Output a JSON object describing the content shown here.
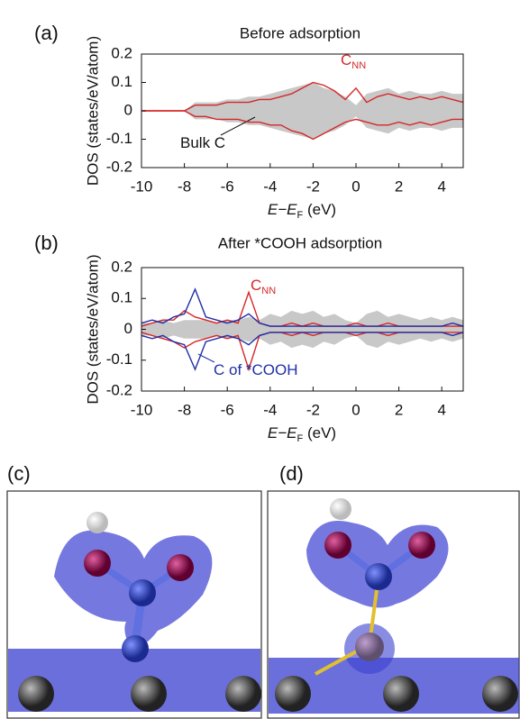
{
  "chart_data": [
    {
      "type": "area",
      "panel_label": "(a)",
      "title": "Before adsorption",
      "ylabel": "DOS (states/eV/atom)",
      "xlabel": {
        "pre": "E−E",
        "sub": "F",
        "post": " (eV)"
      },
      "x": [
        -10,
        -9.5,
        -9,
        -8.5,
        -8,
        -7.5,
        -7,
        -6.5,
        -6,
        -5.5,
        -5,
        -4.5,
        -4,
        -3.5,
        -3,
        -2.5,
        -2,
        -1.5,
        -1,
        -0.5,
        0,
        0.5,
        1,
        1.5,
        2,
        2.5,
        3,
        3.5,
        4,
        4.5,
        5
      ],
      "xlim": [
        -10,
        5
      ],
      "xticks": [
        -10,
        -8,
        -6,
        -4,
        -2,
        0,
        2,
        4
      ],
      "ylim": [
        -0.2,
        0.2
      ],
      "yticks": [
        0.2,
        0.1,
        0,
        -0.1,
        -0.2
      ],
      "series": [
        {
          "name": "Bulk C",
          "color": "#c8c8c8",
          "fill": true,
          "values": [
            0,
            0,
            0,
            0,
            0,
            0.03,
            0.03,
            0.03,
            0.04,
            0.04,
            0.05,
            0.05,
            0.06,
            0.07,
            0.08,
            0.09,
            0.1,
            0.08,
            0.07,
            0.05,
            0.02,
            0.06,
            0.07,
            0.08,
            0.06,
            0.07,
            0.06,
            0.06,
            0.07,
            0.06,
            0.06
          ],
          "values_down": [
            0,
            0,
            0,
            0,
            0,
            -0.03,
            -0.03,
            -0.03,
            -0.04,
            -0.04,
            -0.05,
            -0.05,
            -0.06,
            -0.07,
            -0.08,
            -0.09,
            -0.1,
            -0.08,
            -0.07,
            -0.05,
            -0.02,
            -0.06,
            -0.07,
            -0.08,
            -0.06,
            -0.07,
            -0.06,
            -0.06,
            -0.07,
            -0.06,
            -0.06
          ]
        },
        {
          "name": "C",
          "name_sub": "NN",
          "color": "#d62728",
          "fill": false,
          "values": [
            0,
            0,
            0,
            0,
            0,
            0.02,
            0.02,
            0.02,
            0.03,
            0.03,
            0.03,
            0.04,
            0.04,
            0.05,
            0.06,
            0.08,
            0.1,
            0.09,
            0.07,
            0.04,
            0.08,
            0.03,
            0.05,
            0.06,
            0.05,
            0.04,
            0.05,
            0.04,
            0.05,
            0.04,
            0.03
          ],
          "values_down": [
            0,
            0,
            0,
            0,
            0,
            -0.02,
            -0.02,
            -0.03,
            -0.03,
            -0.03,
            -0.04,
            -0.04,
            -0.05,
            -0.05,
            -0.07,
            -0.08,
            -0.1,
            -0.08,
            -0.06,
            -0.04,
            -0.03,
            -0.04,
            -0.05,
            -0.05,
            -0.04,
            -0.05,
            -0.04,
            -0.05,
            -0.04,
            -0.03,
            -0.03
          ]
        }
      ]
    },
    {
      "type": "area",
      "panel_label": "(b)",
      "title": "After *COOH adsorption",
      "ylabel": "DOS (states/eV/atom)",
      "xlabel": {
        "pre": "E−E",
        "sub": "F",
        "post": " (eV)"
      },
      "x": [
        -10,
        -9.5,
        -9,
        -8.5,
        -8,
        -7.5,
        -7,
        -6.5,
        -6,
        -5.5,
        -5,
        -4.5,
        -4,
        -3.5,
        -3,
        -2.5,
        -2,
        -1.5,
        -1,
        -0.5,
        0,
        0.5,
        1,
        1.5,
        2,
        2.5,
        3,
        3.5,
        4,
        4.5,
        5
      ],
      "xlim": [
        -10,
        5
      ],
      "xticks": [
        -10,
        -8,
        -6,
        -4,
        -2,
        0,
        2,
        4
      ],
      "ylim": [
        -0.2,
        0.2
      ],
      "yticks": [
        0.2,
        0.1,
        0,
        -0.1,
        -0.2
      ],
      "series": [
        {
          "color": "#c8c8c8",
          "fill": true,
          "values": [
            0.02,
            0.02,
            0.03,
            0.02,
            0.03,
            0.03,
            0.03,
            0.02,
            0.03,
            0.03,
            0.04,
            0.03,
            0.05,
            0.04,
            0.06,
            0.05,
            0.06,
            0.04,
            0.05,
            0.03,
            0.02,
            0.05,
            0.06,
            0.04,
            0.05,
            0.04,
            0.03,
            0.04,
            0.03,
            0.04,
            0.03
          ],
          "values_down": [
            -0.02,
            -0.02,
            -0.03,
            -0.02,
            -0.03,
            -0.03,
            -0.03,
            -0.02,
            -0.03,
            -0.03,
            -0.04,
            -0.03,
            -0.05,
            -0.04,
            -0.06,
            -0.05,
            -0.06,
            -0.04,
            -0.05,
            -0.03,
            -0.02,
            -0.05,
            -0.06,
            -0.04,
            -0.05,
            -0.04,
            -0.03,
            -0.04,
            -0.03,
            -0.04,
            -0.03
          ]
        },
        {
          "name": "C",
          "name_sub": "NN",
          "color": "#d62728",
          "fill": false,
          "values": [
            0.01,
            0.02,
            0.03,
            0.03,
            0.06,
            0.04,
            0.03,
            0.02,
            0.03,
            0.02,
            0.12,
            0.02,
            0.01,
            0.01,
            0.02,
            0.01,
            0.02,
            0.01,
            0.01,
            0.01,
            0.02,
            0.01,
            0.01,
            0.02,
            0.01,
            0.01,
            0.01,
            0.01,
            0.01,
            0.01,
            0.01
          ],
          "values_down": [
            -0.01,
            -0.02,
            -0.03,
            -0.04,
            -0.06,
            -0.04,
            -0.03,
            -0.02,
            -0.03,
            -0.02,
            -0.13,
            -0.02,
            -0.01,
            -0.01,
            -0.02,
            -0.01,
            -0.02,
            -0.01,
            -0.01,
            -0.01,
            -0.02,
            -0.01,
            -0.01,
            -0.02,
            -0.01,
            -0.01,
            -0.01,
            -0.01,
            -0.01,
            -0.01,
            -0.01
          ]
        },
        {
          "name": "C of *COOH",
          "color": "#1f2fa8",
          "fill": false,
          "values": [
            0.02,
            0.03,
            0.02,
            0.04,
            0.05,
            0.13,
            0.04,
            0.03,
            0.02,
            0.03,
            0.05,
            0.02,
            0.01,
            0.01,
            0.01,
            0.01,
            0.01,
            0.01,
            0.01,
            0.01,
            0.01,
            0.01,
            0.01,
            0.01,
            0.01,
            0.01,
            0.01,
            0.01,
            0.01,
            0.02,
            0.01
          ],
          "values_down": [
            -0.02,
            -0.03,
            -0.02,
            -0.04,
            -0.05,
            -0.13,
            -0.04,
            -0.03,
            -0.02,
            -0.03,
            -0.05,
            -0.02,
            -0.01,
            -0.01,
            -0.01,
            -0.01,
            -0.01,
            -0.01,
            -0.01,
            -0.01,
            -0.01,
            -0.01,
            -0.01,
            -0.01,
            -0.01,
            -0.01,
            -0.01,
            -0.01,
            -0.01,
            -0.02,
            -0.01
          ]
        }
      ]
    }
  ],
  "images": [
    {
      "label": "(c)"
    },
    {
      "label": "(d)"
    }
  ]
}
